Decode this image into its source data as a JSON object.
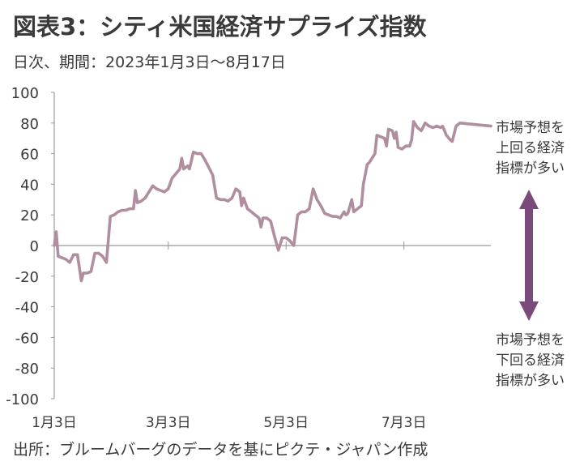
{
  "title": "図表3：シティ米国経済サプライズ指数",
  "subtitle": "日次、期間：2023年1月3日～8月17日",
  "source": "出所：ブルームバーグのデータを基にピクテ・ジャパン作成",
  "annotations": {
    "upper": [
      "市場予想を",
      "上回る経済",
      "指標が多い"
    ],
    "lower": [
      "市場予想を",
      "下回る経済",
      "指標が多い"
    ]
  },
  "colors": {
    "line": "#b08ea0",
    "arrow": "#7a4a7a",
    "axis": "#999999"
  },
  "chart_data": {
    "type": "line",
    "title": "",
    "xlabel": "",
    "ylabel": "",
    "ylim": [
      -100,
      100
    ],
    "yticks": [
      100,
      80,
      60,
      40,
      20,
      0,
      -20,
      -40,
      -60,
      -80,
      -100
    ],
    "xticks": [
      {
        "label": "1月3日",
        "day": 0
      },
      {
        "label": "3月3日",
        "day": 59
      },
      {
        "label": "5月3日",
        "day": 120
      },
      {
        "label": "7月3日",
        "day": 181
      }
    ],
    "xlim_days": [
      0,
      226
    ],
    "series": [
      {
        "points": [
          [
            0,
            0
          ],
          [
            1,
            9
          ],
          [
            2,
            -7
          ],
          [
            4,
            -8
          ],
          [
            6,
            -9
          ],
          [
            8,
            -11
          ],
          [
            10,
            -6
          ],
          [
            12,
            -6
          ],
          [
            14,
            -23
          ],
          [
            15,
            -18
          ],
          [
            17,
            -18
          ],
          [
            19,
            -17
          ],
          [
            21,
            -5
          ],
          [
            23,
            -5
          ],
          [
            25,
            -7
          ],
          [
            27,
            -11
          ],
          [
            29,
            19
          ],
          [
            31,
            20
          ],
          [
            33,
            22
          ],
          [
            35,
            23
          ],
          [
            37,
            23
          ],
          [
            39,
            24
          ],
          [
            41,
            24
          ],
          [
            42,
            36
          ],
          [
            43,
            28
          ],
          [
            45,
            29
          ],
          [
            47,
            31
          ],
          [
            49,
            35
          ],
          [
            51,
            39
          ],
          [
            53,
            37
          ],
          [
            55,
            36
          ],
          [
            57,
            35
          ],
          [
            59,
            37
          ],
          [
            61,
            44
          ],
          [
            63,
            47
          ],
          [
            65,
            50
          ],
          [
            66,
            57
          ],
          [
            67,
            50
          ],
          [
            69,
            52
          ],
          [
            70,
            50
          ],
          [
            72,
            61
          ],
          [
            74,
            60
          ],
          [
            76,
            60
          ],
          [
            78,
            56
          ],
          [
            80,
            51
          ],
          [
            82,
            46
          ],
          [
            84,
            31
          ],
          [
            86,
            30
          ],
          [
            88,
            30
          ],
          [
            90,
            29
          ],
          [
            92,
            31
          ],
          [
            94,
            37
          ],
          [
            96,
            35
          ],
          [
            97,
            26
          ],
          [
            98,
            31
          ],
          [
            100,
            24
          ],
          [
            102,
            22
          ],
          [
            104,
            20
          ],
          [
            106,
            18
          ],
          [
            107,
            12
          ],
          [
            108,
            18
          ],
          [
            110,
            18
          ],
          [
            112,
            16
          ],
          [
            114,
            6
          ],
          [
            116,
            -3
          ],
          [
            118,
            5
          ],
          [
            120,
            5
          ],
          [
            122,
            3
          ],
          [
            124,
            0
          ],
          [
            126,
            20
          ],
          [
            128,
            22
          ],
          [
            130,
            22
          ],
          [
            132,
            24
          ],
          [
            134,
            37
          ],
          [
            136,
            30
          ],
          [
            138,
            26
          ],
          [
            140,
            21
          ],
          [
            142,
            20
          ],
          [
            144,
            19
          ],
          [
            146,
            19
          ],
          [
            148,
            18
          ],
          [
            150,
            22
          ],
          [
            151,
            20
          ],
          [
            152,
            21
          ],
          [
            154,
            30
          ],
          [
            155,
            22
          ],
          [
            157,
            24
          ],
          [
            159,
            26
          ],
          [
            160,
            40
          ],
          [
            162,
            53
          ],
          [
            163,
            54
          ],
          [
            165,
            58
          ],
          [
            166,
            60
          ],
          [
            167,
            72
          ],
          [
            169,
            71
          ],
          [
            171,
            70
          ],
          [
            172,
            65
          ],
          [
            173,
            76
          ],
          [
            175,
            75
          ],
          [
            176,
            70
          ],
          [
            177,
            74
          ],
          [
            178,
            64
          ],
          [
            180,
            63
          ],
          [
            182,
            65
          ],
          [
            184,
            65
          ],
          [
            185,
            69
          ],
          [
            186,
            81
          ],
          [
            188,
            77
          ],
          [
            190,
            75
          ],
          [
            192,
            80
          ],
          [
            194,
            78
          ],
          [
            196,
            77
          ],
          [
            198,
            78
          ],
          [
            200,
            77
          ],
          [
            201,
            78
          ],
          [
            202,
            75
          ],
          [
            203,
            72
          ],
          [
            205,
            69
          ],
          [
            206,
            68
          ],
          [
            208,
            78
          ],
          [
            210,
            80
          ],
          [
            226,
            78
          ]
        ]
      }
    ]
  }
}
